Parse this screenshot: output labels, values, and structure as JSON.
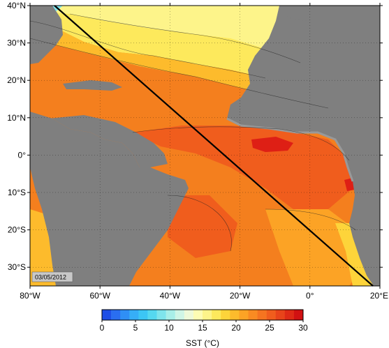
{
  "map": {
    "date": "03/05/2012",
    "lat_labels": [
      "40°N",
      "30°N",
      "20°N",
      "10°N",
      "0°",
      "10°S",
      "20°S",
      "30°S"
    ],
    "lon_labels": [
      "80°W",
      "60°W",
      "40°W",
      "20°W",
      "0°",
      "20°E"
    ],
    "lat_values": [
      40,
      30,
      20,
      10,
      0,
      -10,
      -20,
      -30
    ],
    "lon_values": [
      -80,
      -60,
      -40,
      -20,
      0,
      20
    ],
    "extent": {
      "lon_min": -80,
      "lon_max": 20,
      "lat_min": -35,
      "lat_max": 40
    },
    "transect": {
      "start": {
        "lon": -73,
        "lat": 40
      },
      "end": {
        "lon": 18,
        "lat": -35
      }
    },
    "land_color": "#7f7f7f",
    "transect_color": "#000000"
  },
  "colorbar": {
    "title": "SST (°C)",
    "tick_labels": [
      "0",
      "5",
      "10",
      "15",
      "20",
      "25",
      "30"
    ],
    "min": 0,
    "max": 30,
    "colors": [
      "#1f4fe6",
      "#2a6ef0",
      "#2f8ff5",
      "#36aef7",
      "#3cc6f5",
      "#55d8f0",
      "#7fe4ec",
      "#a8eee8",
      "#cff5e6",
      "#eef9d9",
      "#fdfcb4",
      "#fdf48a",
      "#fde95c",
      "#fdd43a",
      "#fdbb2c",
      "#fca325",
      "#f98b22",
      "#f57420",
      "#f05d1d",
      "#e8441a",
      "#de2a16",
      "#d11112"
    ]
  }
}
